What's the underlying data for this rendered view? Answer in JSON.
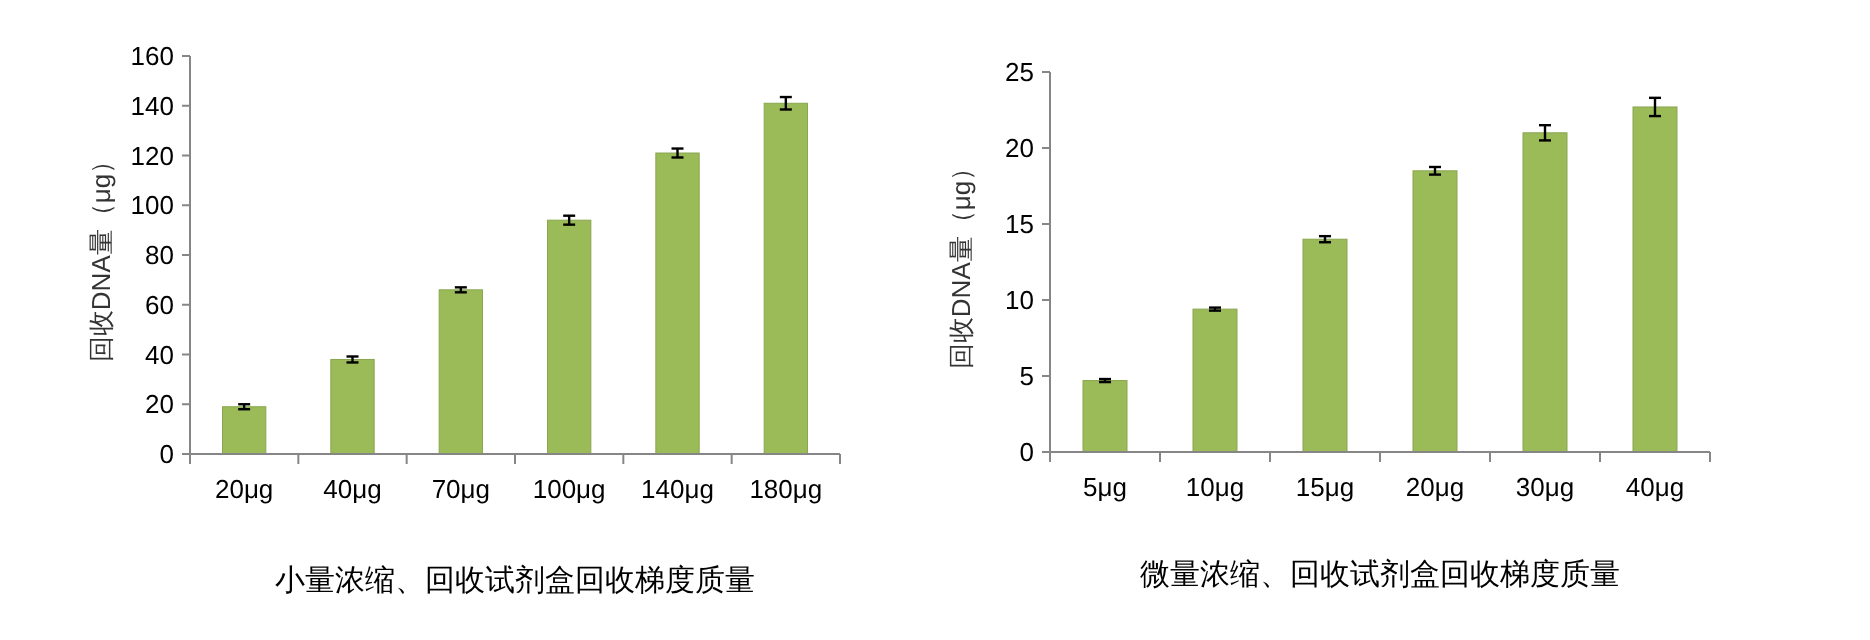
{
  "chart_data": [
    {
      "type": "bar",
      "title": "小量浓缩、回收试剂盒回收梯度质量",
      "ylabel": "回收DNA量（μg）",
      "categories": [
        "20μg",
        "40μg",
        "70μg",
        "100μg",
        "140μg",
        "180μg"
      ],
      "values": [
        19,
        38,
        66,
        94,
        121,
        141
      ],
      "errors": [
        1,
        1.2,
        1,
        1.8,
        1.8,
        2.5
      ],
      "color": "#9bbb59",
      "ylim": [
        0,
        160
      ],
      "yticks": [
        0,
        20,
        40,
        60,
        80,
        100,
        120,
        140,
        160
      ]
    },
    {
      "type": "bar",
      "title": "微量浓缩、回收试剂盒回收梯度质量",
      "ylabel": "回收DNA量（μg）",
      "categories": [
        "5μg",
        "10μg",
        "15μg",
        "20μg",
        "30μg",
        "40μg"
      ],
      "values": [
        4.7,
        9.4,
        14,
        18.5,
        21,
        22.7
      ],
      "errors": [
        0.1,
        0.1,
        0.2,
        0.25,
        0.5,
        0.6
      ],
      "color": "#9bbb59",
      "ylim": [
        0,
        25
      ],
      "yticks": [
        0,
        5,
        10,
        15,
        20,
        25
      ]
    }
  ]
}
